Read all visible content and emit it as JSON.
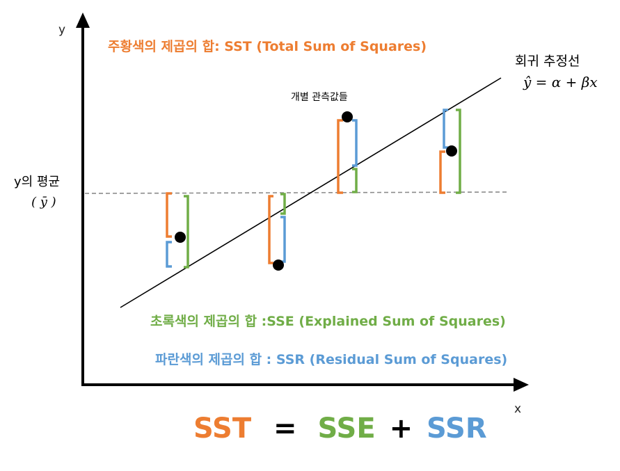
{
  "axes": {
    "x_label": "x",
    "y_label": "y"
  },
  "mean": {
    "label": "y의 평균",
    "symbol": "( ȳ )"
  },
  "regression": {
    "label": "회귀 추정선",
    "formula": "ŷ = α + βx"
  },
  "observations_label": "개별 관측값들",
  "legend": {
    "sst": "주황색의 제곱의 합: SST (Total Sum of Squares)",
    "sse": "초록색의 제곱의 합  :SSE (Explained Sum of Squares)",
    "ssr": "파란색의 제곱의 합 : SSR (Residual Sum of Squares)"
  },
  "equation": {
    "sst": "SST",
    "eq": "=",
    "sse": "SSE",
    "plus": "+",
    "ssr": "SSR"
  },
  "colors": {
    "sst": "#ed7d31",
    "sse": "#70ad47",
    "ssr": "#5b9bd5",
    "axis": "#000000",
    "mean_line": "#808080"
  }
}
